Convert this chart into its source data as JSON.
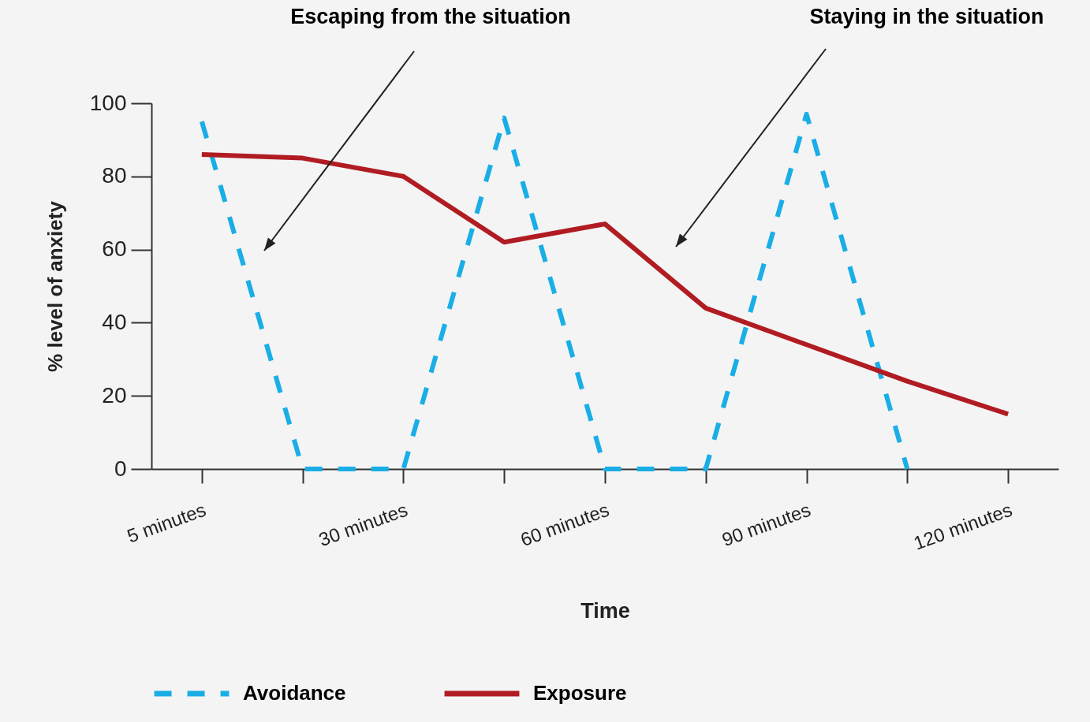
{
  "chart_data": {
    "type": "line",
    "xlabel": "Time",
    "ylabel": "% level of anxiety",
    "categories": [
      "5 minutes",
      null,
      "30 minutes",
      null,
      "60 minutes",
      null,
      "90 minutes",
      null,
      "120 minutes"
    ],
    "series": [
      {
        "name": "Avoidance",
        "color": "#1aaee6",
        "line_style": "dashed",
        "values": [
          95,
          0,
          0,
          96,
          0,
          0,
          97,
          0,
          null
        ]
      },
      {
        "name": "Exposure",
        "color": "#b01c22",
        "line_style": "solid",
        "values": [
          86,
          85,
          80,
          62,
          67,
          44,
          34,
          24,
          15
        ]
      }
    ],
    "ylim": [
      0,
      100
    ],
    "yticks": [
      0,
      20,
      40,
      60,
      80,
      100
    ],
    "legend": "bottom",
    "annotations": [
      "Escaping from the situation",
      "Staying in the situation"
    ]
  }
}
